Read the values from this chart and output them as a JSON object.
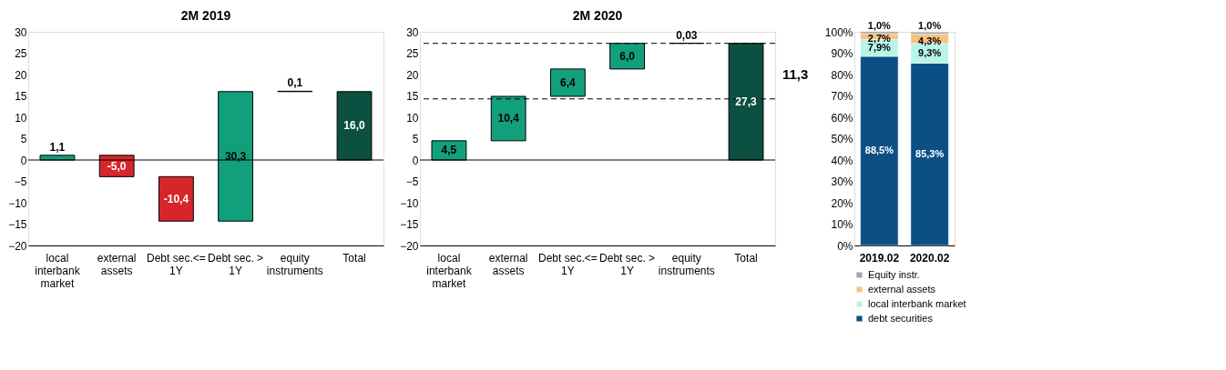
{
  "chart_data": [
    {
      "type": "bar",
      "title": "2M 2019",
      "categories": [
        "local interbank market",
        "external assets",
        "Debt sec.<= 1Y",
        "Debt sec. > 1Y",
        "equity instruments",
        "Total"
      ],
      "base": [
        0,
        1.1,
        -3.9,
        -14.3,
        16.0,
        0
      ],
      "values": [
        1.1,
        -5.0,
        -10.4,
        30.3,
        0.1,
        16.0
      ],
      "colors": [
        "#12a07c",
        "#d7262b",
        "#d7262b",
        "#12a07c",
        "#000000",
        "#0b5040"
      ],
      "value_labels": [
        "1,1",
        "-5,0",
        "-10,4",
        "30,3",
        "0,1",
        "16,0"
      ],
      "ylim": [
        -20,
        30
      ],
      "yticks": [
        -20,
        -15,
        -10,
        -5,
        0,
        5,
        10,
        15,
        20,
        25,
        30
      ],
      "ref_lines": [
        {
          "axis": "y",
          "value": 0,
          "color": "#000000",
          "line_style": "solid"
        }
      ],
      "grid": false,
      "legend": false
    },
    {
      "type": "bar",
      "title": "2M 2020",
      "categories": [
        "local interbank market",
        "external assets",
        "Debt sec.<= 1Y",
        "Debt sec. > 1Y",
        "equity instruments",
        "Total"
      ],
      "base": [
        0,
        4.5,
        14.9,
        21.3,
        27.3,
        0
      ],
      "values": [
        4.5,
        10.4,
        6.4,
        6.0,
        0.03,
        27.3
      ],
      "colors": [
        "#12a07c",
        "#12a07c",
        "#12a07c",
        "#12a07c",
        "#000000",
        "#0b5040"
      ],
      "value_labels": [
        "4,5",
        "10,4",
        "6,4",
        "6,0",
        "0,03",
        "27,3"
      ],
      "ylim": [
        -20,
        30
      ],
      "yticks": [
        -20,
        -15,
        -10,
        -5,
        0,
        5,
        10,
        15,
        20,
        25,
        30
      ],
      "ref_lines": [
        {
          "axis": "y",
          "value": 0,
          "color": "#000000",
          "line_style": "solid"
        },
        {
          "axis": "y",
          "value": 14.3,
          "color": "#000000",
          "line_style": "dashed"
        },
        {
          "axis": "y",
          "value": 27.3,
          "color": "#000000",
          "line_style": "dashed"
        }
      ],
      "annotations": [
        "11,3"
      ],
      "grid": false,
      "legend": false
    },
    {
      "type": "bar",
      "stacked": true,
      "categories": [
        "2019.02",
        "2020.02"
      ],
      "series": [
        {
          "name": "debt securities",
          "color": "#0b4f85",
          "values": [
            88.5,
            85.3
          ],
          "value_labels": [
            "88,5%",
            "85,3%"
          ]
        },
        {
          "name": "local interbank market",
          "color": "#b8f5e8",
          "values": [
            7.9,
            9.3
          ],
          "value_labels": [
            "7,9%",
            "9,3%"
          ]
        },
        {
          "name": "external assets",
          "color": "#f8c27c",
          "values": [
            2.7,
            4.3
          ],
          "value_labels": [
            "2,7%",
            "4,3%"
          ]
        },
        {
          "name": "Equity instr.",
          "color": "#a6a6a6",
          "values": [
            1.0,
            1.0
          ],
          "value_labels": [
            "1,0%",
            "1,0%"
          ]
        }
      ],
      "ylim": [
        0,
        100
      ],
      "yticks": [
        {
          "value": 0,
          "label": "0%"
        },
        {
          "value": 10,
          "label": "10%"
        },
        {
          "value": 20,
          "label": "20%"
        },
        {
          "value": 30,
          "label": "30%"
        },
        {
          "value": 40,
          "label": "40%"
        },
        {
          "value": 50,
          "label": "50%"
        },
        {
          "value": 60,
          "label": "60%"
        },
        {
          "value": 70,
          "label": "70%"
        },
        {
          "value": 80,
          "label": "80%"
        },
        {
          "value": 90,
          "label": "90%"
        },
        {
          "value": 100,
          "label": "100%"
        }
      ],
      "grid": false,
      "legend": "bottom"
    }
  ]
}
